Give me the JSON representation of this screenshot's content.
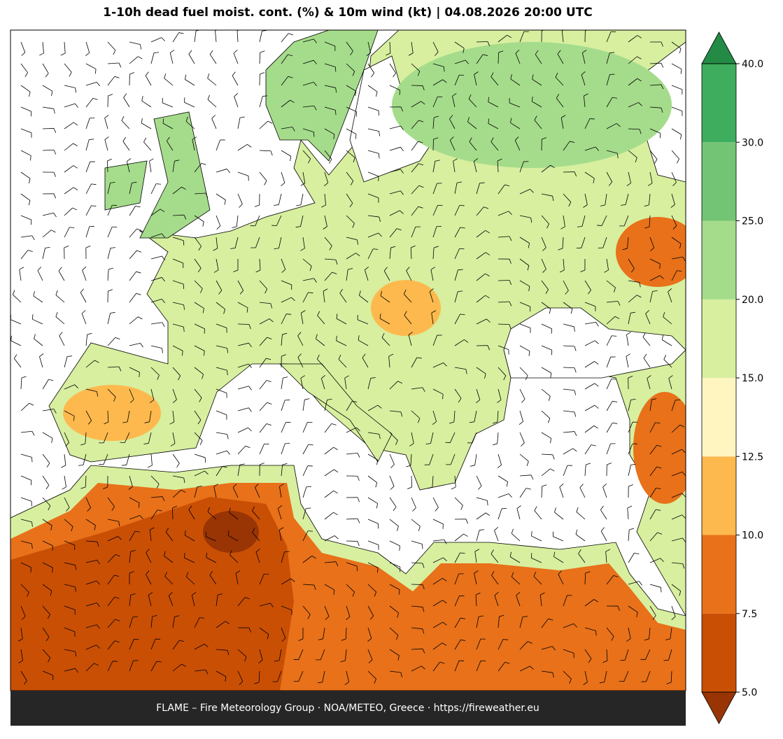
{
  "title": "1-10h dead fuel moist. cont. (%) & 10m wind (kt)  |  04.08.2026 20:00 UTC",
  "footer": "FLAME – Fire Meteorology Group · NOA/METEO, Greece · https://fireweather.eu",
  "colorbar": {
    "ticks": [
      {
        "value": 5,
        "label": "5.0"
      },
      {
        "value": 7.5,
        "label": "7.5"
      },
      {
        "value": 10,
        "label": "10.0"
      },
      {
        "value": 12.5,
        "label": "12.5"
      },
      {
        "value": 15,
        "label": "15.0"
      },
      {
        "value": 20,
        "label": "20.0"
      },
      {
        "value": 25,
        "label": "25.0"
      },
      {
        "value": 30,
        "label": "30.0"
      },
      {
        "value": 40,
        "label": "40.0"
      }
    ],
    "colors": [
      "#c94f05",
      "#e8711a",
      "#fdb94d",
      "#fff5c0",
      "#d7ef9f",
      "#a5dc8b",
      "#74c476",
      "#3ead5d"
    ],
    "under_color": "#993404",
    "over_color": "#238b45"
  }
}
